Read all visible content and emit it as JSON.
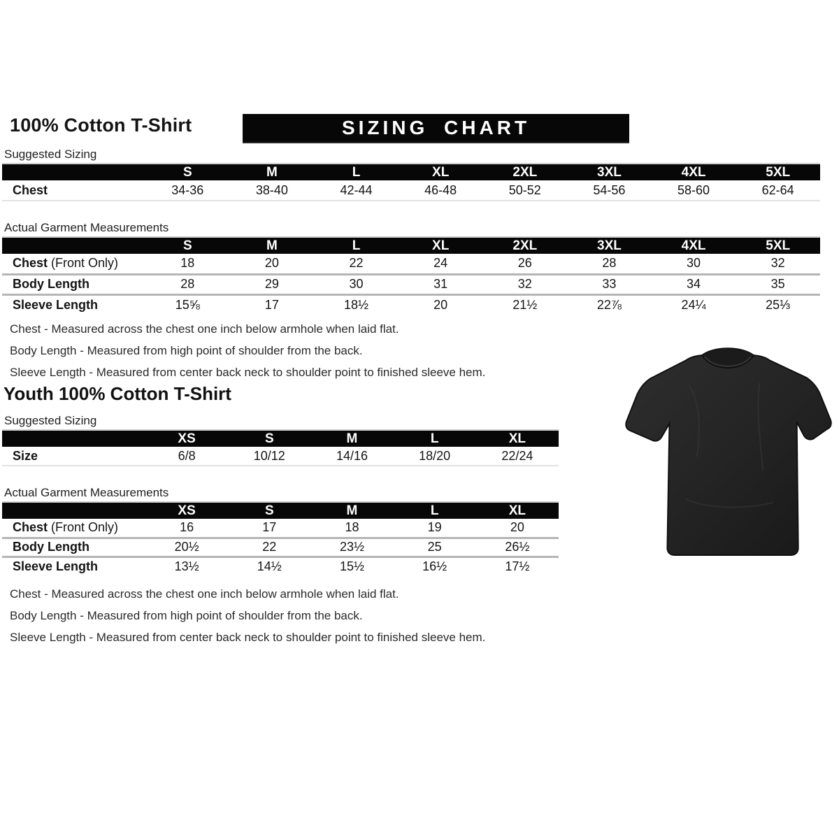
{
  "page": {
    "title": "100% Cotton T-Shirt",
    "banner": "SIZING CHART"
  },
  "adult": {
    "suggested_label": "Suggested Sizing",
    "actual_label": "Actual Garment Measurements",
    "suggested": {
      "columns": [
        "S",
        "M",
        "L",
        "XL",
        "2XL",
        "3XL",
        "4XL",
        "5XL"
      ],
      "rows": [
        {
          "label": "Chest",
          "suffix": "",
          "values": [
            "34-36",
            "38-40",
            "42-44",
            "46-48",
            "50-52",
            "54-56",
            "58-60",
            "62-64"
          ]
        }
      ]
    },
    "actual": {
      "columns": [
        "S",
        "M",
        "L",
        "XL",
        "2XL",
        "3XL",
        "4XL",
        "5XL"
      ],
      "rows": [
        {
          "label": "Chest",
          "suffix": " (Front Only)",
          "values": [
            "18",
            "20",
            "22",
            "24",
            "26",
            "28",
            "30",
            "32"
          ]
        },
        {
          "label": "Body Length",
          "suffix": "",
          "values": [
            "28",
            "29",
            "30",
            "31",
            "32",
            "33",
            "34",
            "35"
          ]
        },
        {
          "label": "Sleeve Length",
          "suffix": "",
          "values": [
            "15⅝",
            "17",
            "18½",
            "20",
            "21½",
            "22⅞",
            "24¼",
            "25⅓"
          ]
        }
      ]
    },
    "notes": [
      "Chest - Measured across the chest one inch below armhole when laid flat.",
      "Body Length - Measured from high point of shoulder from the back.",
      "Sleeve Length - Measured from center back neck to shoulder point to finished sleeve hem."
    ]
  },
  "youth": {
    "title": "Youth 100% Cotton T-Shirt",
    "suggested_label": "Suggested Sizing",
    "actual_label": "Actual Garment Measurements",
    "suggested": {
      "columns": [
        "XS",
        "S",
        "M",
        "L",
        "XL"
      ],
      "rows": [
        {
          "label": "Size",
          "suffix": "",
          "values": [
            "6/8",
            "10/12",
            "14/16",
            "18/20",
            "22/24"
          ]
        }
      ]
    },
    "actual": {
      "columns": [
        "XS",
        "S",
        "M",
        "L",
        "XL"
      ],
      "rows": [
        {
          "label": "Chest",
          "suffix": " (Front Only)",
          "values": [
            "16",
            "17",
            "18",
            "19",
            "20"
          ]
        },
        {
          "label": "Body Length",
          "suffix": "",
          "values": [
            "20½",
            "22",
            "23½",
            "25",
            "26½"
          ]
        },
        {
          "label": "Sleeve Length",
          "suffix": "",
          "values": [
            "13½",
            "14½",
            "15½",
            "16½",
            "17½"
          ]
        }
      ]
    },
    "notes": [
      "Chest - Measured across the chest one inch below armhole when laid flat.",
      "Body Length - Measured from high point of shoulder from the back.",
      "Sleeve Length - Measured from center back neck to shoulder point to finished sleeve hem."
    ]
  },
  "tshirt_image": {
    "name": "black short-sleeve t-shirt",
    "shirt_color": "#242424",
    "collar_color": "#1b1b1b"
  },
  "colors": {
    "header_bar": "#070707",
    "header_text": "#ffffff",
    "body_text": "#141414",
    "row_separator": "#b5b5b5"
  }
}
